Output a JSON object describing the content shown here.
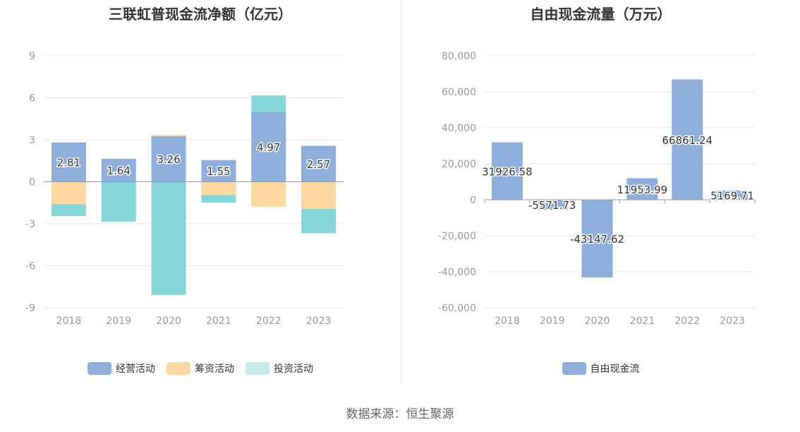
{
  "source_text": "数据来源：恒生聚源",
  "colors": {
    "operating": "#8eaedc",
    "financing": "#fed8a0",
    "investing": "#86d6d9",
    "investing_legend": "#c5eaec",
    "fcf": "#8eaedc"
  },
  "chart_data": [
    {
      "type": "bar",
      "stacked": true,
      "title": "三联虹普现金流净额（亿元）",
      "categories": [
        "2018",
        "2019",
        "2020",
        "2021",
        "2022",
        "2023"
      ],
      "ylim": [
        -9,
        9
      ],
      "yticks": [
        9,
        6,
        3,
        0,
        -3,
        -6,
        -9
      ],
      "grid": true,
      "legend": "bottom-center",
      "series": [
        {
          "name": "经营活动",
          "values": [
            2.81,
            1.64,
            3.26,
            1.55,
            4.97,
            2.57
          ],
          "labels": [
            "2.81",
            "1.64",
            "3.26",
            "1.55",
            "4.97",
            "2.57"
          ]
        },
        {
          "name": "筹资活动",
          "values": [
            -1.6,
            0,
            0.1,
            -0.95,
            -1.78,
            -1.93
          ]
        },
        {
          "name": "投资活动",
          "values": [
            -0.85,
            -2.85,
            -8.08,
            -0.55,
            1.2,
            -1.75
          ]
        }
      ]
    },
    {
      "type": "bar",
      "title": "自由现金流量（万元）",
      "categories": [
        "2018",
        "2019",
        "2020",
        "2021",
        "2022",
        "2023"
      ],
      "ylim": [
        -60000,
        80000
      ],
      "yticks": [
        "80,000",
        "60,000",
        "40,000",
        "20,000",
        "0",
        "-20,000",
        "-40,000",
        "-60,000"
      ],
      "grid": true,
      "legend": "bottom-center",
      "series": [
        {
          "name": "自由现金流",
          "values": [
            31926.58,
            -5571.73,
            -43147.62,
            11953.99,
            66861.24,
            5169.71
          ],
          "labels": [
            "31926.58",
            "-5571.73",
            "-43147.62",
            "11953.99",
            "66861.24",
            "5169.71"
          ]
        }
      ]
    }
  ]
}
